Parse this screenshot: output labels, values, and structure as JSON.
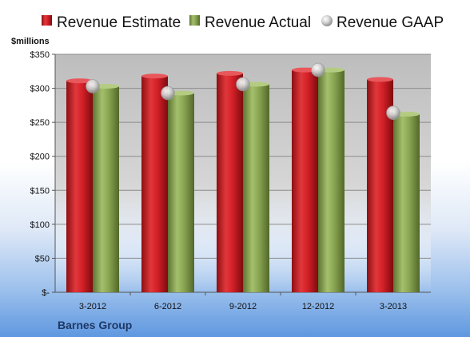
{
  "chart_data": {
    "type": "bar",
    "title": "",
    "unit_label": "$millions",
    "company": "Barnes Group",
    "categories": [
      "3-2012",
      "6-2012",
      "9-2012",
      "12-2012",
      "3-2013"
    ],
    "y_ticks": [
      "$-",
      "$50",
      "$100",
      "$150",
      "$200",
      "$250",
      "$300",
      "$350"
    ],
    "ylim": [
      0,
      350
    ],
    "grid": true,
    "legend_position": "top",
    "series": [
      {
        "name": "Revenue Estimate",
        "kind": "bar",
        "color": "#d42027",
        "values": [
          311,
          318,
          322,
          327,
          313
        ]
      },
      {
        "name": "Revenue Actual",
        "kind": "bar",
        "color": "#8aa653",
        "values": [
          303,
          293,
          306,
          327,
          262
        ]
      },
      {
        "name": "Revenue GAAP",
        "kind": "marker",
        "color": "#c9c9c9",
        "values": [
          303,
          293,
          306,
          327,
          264
        ]
      }
    ]
  }
}
